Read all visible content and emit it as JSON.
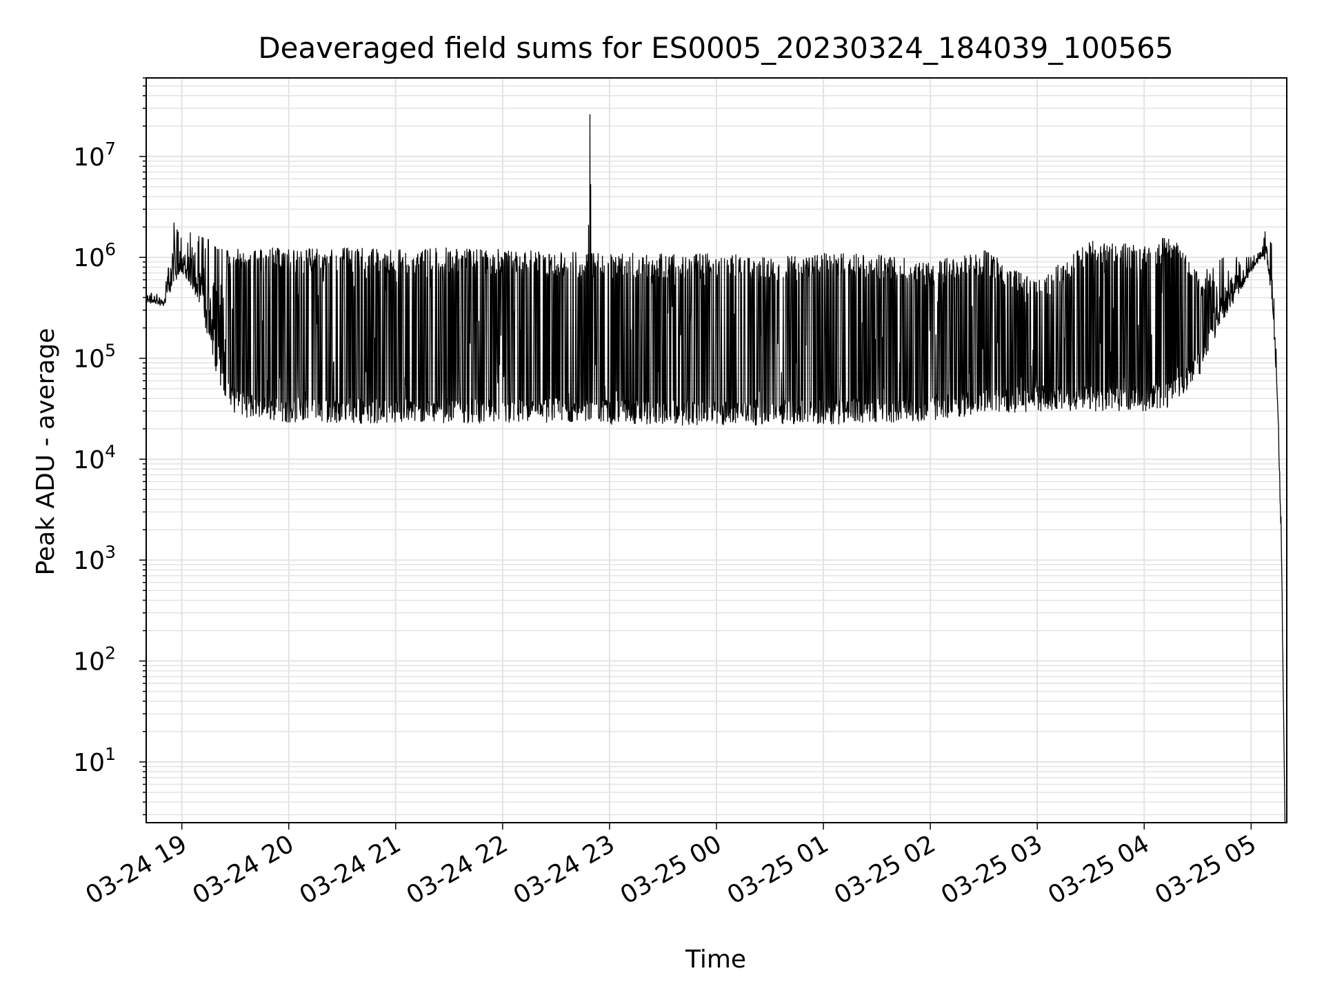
{
  "chart_data": {
    "type": "line",
    "title": "Deaveraged field sums for ES0005_20230324_184039_100565",
    "xlabel": "Time",
    "ylabel": "Peak ADU - average",
    "yscale": "log",
    "ylim": [
      2.5,
      60000000
    ],
    "xlim": [
      "2023-03-24 18:40",
      "2023-03-25 05:20"
    ],
    "grid": true,
    "grid_color": "#e3e3e3",
    "line_color": "#000000",
    "x_tick_labels": [
      "03-24 19",
      "03-24 20",
      "03-24 21",
      "03-24 22",
      "03-24 23",
      "03-25 00",
      "03-25 01",
      "03-25 02",
      "03-25 03",
      "03-25 04",
      "03-25 05"
    ],
    "y_tick_labels": [
      {
        "base": "10",
        "exp": "1"
      },
      {
        "base": "10",
        "exp": "2"
      },
      {
        "base": "10",
        "exp": "3"
      },
      {
        "base": "10",
        "exp": "4"
      },
      {
        "base": "10",
        "exp": "5"
      },
      {
        "base": "10",
        "exp": "6"
      },
      {
        "base": "10",
        "exp": "7"
      }
    ],
    "series": [
      {
        "x": [
          "2023-03-24 18:40",
          "2023-03-24 18:50",
          "2023-03-24 18:55",
          "2023-03-24 19:00",
          "2023-03-24 19:03",
          "2023-03-24 19:07",
          "2023-03-24 19:10",
          "2023-03-24 19:15",
          "2023-03-24 19:20",
          "2023-03-24 19:25",
          "2023-03-24 19:30",
          "2023-03-24 19:40",
          "2023-03-24 19:50",
          "2023-03-24 20:00",
          "2023-03-24 20:30",
          "2023-03-24 21:00",
          "2023-03-24 21:30",
          "2023-03-24 22:00",
          "2023-03-24 22:30",
          "2023-03-24 22:48",
          "2023-03-24 22:49",
          "2023-03-24 22:50",
          "2023-03-24 23:00",
          "2023-03-24 23:30",
          "2023-03-25 00:00",
          "2023-03-25 00:30",
          "2023-03-25 01:00",
          "2023-03-25 01:30",
          "2023-03-25 02:00",
          "2023-03-25 02:30",
          "2023-03-25 03:00",
          "2023-03-25 03:30",
          "2023-03-25 04:00",
          "2023-03-25 04:15",
          "2023-03-25 04:30",
          "2023-03-25 04:45",
          "2023-03-25 05:00",
          "2023-03-25 05:06",
          "2023-03-25 05:09",
          "2023-03-25 05:12",
          "2023-03-25 05:15",
          "2023-03-25 05:17",
          "2023-03-25 05:19"
        ],
        "low": [
          350000,
          330000,
          500000,
          700000,
          600000,
          450000,
          300000,
          150000,
          60000,
          35000,
          28000,
          25000,
          24000,
          23000,
          23000,
          22000,
          23000,
          22000,
          23000,
          23000,
          23000,
          23000,
          22000,
          22000,
          21000,
          22000,
          22000,
          23000,
          24000,
          28000,
          30000,
          30000,
          30000,
          32000,
          60000,
          250000,
          700000,
          1000000,
          900000,
          300000,
          30000,
          1000,
          2.5
        ],
        "high": [
          450000,
          420000,
          2300000,
          1500000,
          1800000,
          1700000,
          1600000,
          1500000,
          1200000,
          1200000,
          1250000,
          1200000,
          1250000,
          1200000,
          1250000,
          1200000,
          1250000,
          1200000,
          1150000,
          1100000,
          26000000,
          1100000,
          1100000,
          1100000,
          1100000,
          1000000,
          1100000,
          1100000,
          900000,
          1200000,
          600000,
          1500000,
          1300000,
          1700000,
          700000,
          1000000,
          1000000,
          1150000,
          2400000,
          1200000,
          40000,
          2000,
          2.5
        ]
      }
    ]
  }
}
